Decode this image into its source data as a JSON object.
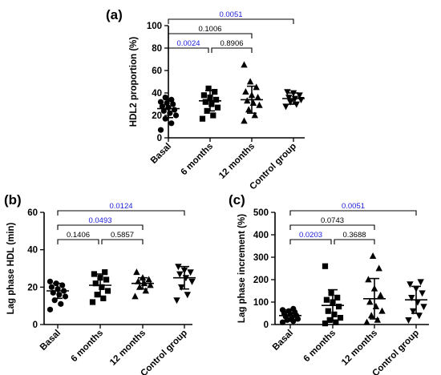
{
  "chart_data": [
    {
      "panel": "(a)",
      "type": "scatter",
      "ylabel": "HDL2 proportion (%)",
      "ylim": [
        0,
        100
      ],
      "yticks": [
        0,
        20,
        40,
        60,
        80,
        100
      ],
      "categories": [
        "Basal",
        "6 months",
        "12 months",
        "Control group"
      ],
      "markers": [
        "circle",
        "square",
        "triangle",
        "inverted-triangle"
      ],
      "points": [
        [
          7,
          13,
          17,
          20,
          22,
          24,
          25,
          27,
          28,
          30,
          31,
          32,
          34,
          36
        ],
        [
          17,
          20,
          24,
          27,
          30,
          32,
          34,
          36,
          38,
          41,
          44
        ],
        [
          15,
          20,
          25,
          29,
          31,
          33,
          36,
          38,
          41,
          45,
          50,
          65
        ],
        [
          28,
          30,
          32,
          34,
          35,
          36,
          38,
          40,
          41
        ]
      ],
      "mean": [
        26,
        33,
        34,
        35
      ],
      "sd": [
        8,
        9,
        12,
        5
      ],
      "comparisons": [
        {
          "from": 0,
          "to": 1,
          "p": "0.0024",
          "color": "#1a1adc"
        },
        {
          "from": 1,
          "to": 2,
          "p": "0.8906",
          "color": "#000000"
        },
        {
          "from": 0,
          "to": 2,
          "p": "0.1006",
          "color": "#000000"
        },
        {
          "from": 0,
          "to": 3,
          "p": "0.0051",
          "color": "#1a1adc"
        }
      ]
    },
    {
      "panel": "(b)",
      "type": "scatter",
      "ylabel": "Lag phase HDL (min)",
      "ylim": [
        0,
        60
      ],
      "yticks": [
        0,
        20,
        40,
        60
      ],
      "categories": [
        "Basal",
        "6 months",
        "12 months",
        "Control group"
      ],
      "markers": [
        "circle",
        "square",
        "triangle",
        "inverted-triangle"
      ],
      "points": [
        [
          8,
          11,
          13,
          15,
          16,
          17,
          18,
          19,
          20,
          21,
          22,
          23
        ],
        [
          12,
          14,
          16,
          18,
          20,
          22,
          24,
          25,
          27,
          28
        ],
        [
          15,
          18,
          20,
          21,
          22,
          23,
          24,
          25,
          28
        ],
        [
          13,
          16,
          20,
          23,
          25,
          27,
          28,
          29,
          31
        ]
      ],
      "mean": [
        18,
        21,
        22,
        25
      ],
      "sd": [
        4,
        6,
        3,
        6
      ],
      "comparisons": [
        {
          "from": 0,
          "to": 1,
          "p": "0.1406",
          "color": "#000000"
        },
        {
          "from": 1,
          "to": 2,
          "p": "0.5857",
          "color": "#000000"
        },
        {
          "from": 0,
          "to": 2,
          "p": "0.0493",
          "color": "#1a1adc"
        },
        {
          "from": 0,
          "to": 3,
          "p": "0.0124",
          "color": "#1a1adc"
        }
      ]
    },
    {
      "panel": "(c)",
      "type": "scatter",
      "ylabel": "Lag phase increment (%)",
      "ylim": [
        0,
        500
      ],
      "yticks": [
        0,
        100,
        200,
        300,
        400,
        500
      ],
      "categories": [
        "Basal",
        "6 months",
        "12 months",
        "Control group"
      ],
      "markers": [
        "circle",
        "square",
        "triangle",
        "inverted-triangle"
      ],
      "points": [
        [
          10,
          15,
          20,
          25,
          30,
          35,
          40,
          45,
          50,
          55,
          60,
          65,
          70
        ],
        [
          5,
          10,
          20,
          30,
          45,
          60,
          80,
          100,
          110,
          120,
          140,
          260
        ],
        [
          10,
          20,
          40,
          60,
          80,
          100,
          130,
          160,
          200,
          250,
          305
        ],
        [
          20,
          40,
          60,
          80,
          100,
          120,
          140,
          160,
          180,
          190
        ]
      ],
      "mean": [
        40,
        85,
        115,
        110
      ],
      "sd": [
        25,
        70,
        90,
        60
      ],
      "comparisons": [
        {
          "from": 0,
          "to": 1,
          "p": "0.0203",
          "color": "#1a1adc"
        },
        {
          "from": 1,
          "to": 2,
          "p": "0.3688",
          "color": "#000000"
        },
        {
          "from": 0,
          "to": 2,
          "p": "0.0743",
          "color": "#000000"
        },
        {
          "from": 0,
          "to": 3,
          "p": "0.0051",
          "color": "#1a1adc"
        }
      ]
    }
  ]
}
